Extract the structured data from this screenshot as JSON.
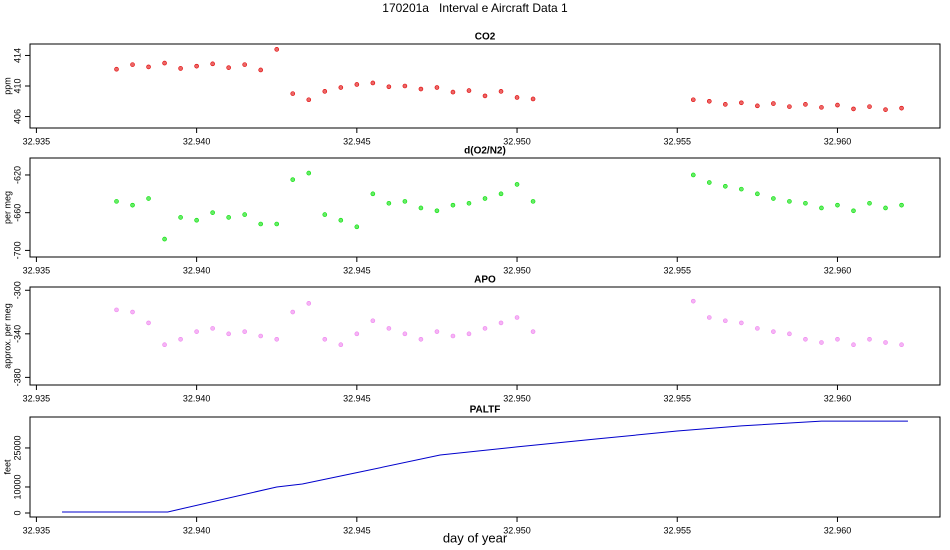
{
  "title": "170201a   Interval e Aircraft Data 1",
  "xlabel": "day of year",
  "chart_data": [
    {
      "type": "scatter",
      "title": "CO2",
      "ylabel": "ppm",
      "color": "#e00000",
      "x": [
        32.9375,
        32.938,
        32.9385,
        32.939,
        32.9395,
        32.94,
        32.9405,
        32.941,
        32.9415,
        32.942,
        32.9425,
        32.943,
        32.9435,
        32.944,
        32.9445,
        32.945,
        32.9455,
        32.946,
        32.9465,
        32.947,
        32.9475,
        32.948,
        32.9485,
        32.949,
        32.9495,
        32.95,
        32.9505,
        32.9555,
        32.956,
        32.9565,
        32.957,
        32.9575,
        32.958,
        32.9585,
        32.959,
        32.9595,
        32.96,
        32.9605,
        32.961,
        32.9615,
        32.962
      ],
      "values": [
        412.2,
        412.8,
        412.5,
        413.0,
        412.3,
        412.6,
        412.9,
        412.4,
        412.8,
        412.1,
        414.8,
        409.0,
        408.2,
        409.3,
        409.8,
        410.2,
        410.4,
        409.9,
        410.0,
        409.6,
        409.8,
        409.2,
        409.4,
        408.7,
        409.3,
        408.5,
        408.3,
        408.2,
        408.0,
        407.6,
        407.8,
        407.4,
        407.7,
        407.3,
        407.6,
        407.2,
        407.5,
        407.0,
        407.3,
        406.9,
        407.1
      ],
      "xlim": [
        32.9348,
        32.9632
      ],
      "ylim": [
        404.5,
        415.5
      ],
      "xticks": [
        32.935,
        {
          "value": 32.94,
          "label": "32.940"
        },
        32.945,
        {
          "value": 32.95,
          "label": "32.950"
        },
        32.955,
        {
          "value": 32.96,
          "label": "32.960"
        }
      ],
      "yticks": [
        406,
        410,
        414
      ]
    },
    {
      "type": "scatter",
      "title": "d(O2/N2)",
      "ylabel": "per meg",
      "color": "#00e000",
      "x": [
        32.9375,
        32.938,
        32.9385,
        32.939,
        32.9395,
        32.94,
        32.9405,
        32.941,
        32.9415,
        32.942,
        32.9425,
        32.943,
        32.9435,
        32.944,
        32.9445,
        32.945,
        32.9455,
        32.946,
        32.9465,
        32.947,
        32.9475,
        32.948,
        32.9485,
        32.949,
        32.9495,
        32.95,
        32.9505,
        32.9555,
        32.956,
        32.9565,
        32.957,
        32.9575,
        32.958,
        32.9585,
        32.959,
        32.9595,
        32.96,
        32.9605,
        32.961,
        32.9615,
        32.962
      ],
      "values": [
        -648,
        -652,
        -645,
        -688,
        -665,
        -668,
        -660,
        -665,
        -662,
        -672,
        -672,
        -625,
        -618,
        -662,
        -668,
        -675,
        -640,
        -650,
        -648,
        -655,
        -658,
        -652,
        -650,
        -645,
        -640,
        -630,
        -648,
        -620,
        -628,
        -632,
        -635,
        -640,
        -645,
        -648,
        -650,
        -655,
        -652,
        -658,
        -650,
        -655,
        -652
      ],
      "xlim": [
        32.9348,
        32.9632
      ],
      "ylim": [
        -707,
        -602
      ],
      "xticks": [
        32.935,
        {
          "value": 32.94,
          "label": "32.940"
        },
        32.945,
        {
          "value": 32.95,
          "label": "32.950"
        },
        32.955,
        {
          "value": 32.96,
          "label": "32.960"
        }
      ],
      "yticks": [
        -700,
        -660,
        -620
      ]
    },
    {
      "type": "scatter",
      "title": "APO",
      "ylabel": "approx. per meg",
      "color": "#ee82ee",
      "x": [
        32.9375,
        32.938,
        32.9385,
        32.939,
        32.9395,
        32.94,
        32.9405,
        32.941,
        32.9415,
        32.942,
        32.9425,
        32.943,
        32.9435,
        32.944,
        32.9445,
        32.945,
        32.9455,
        32.946,
        32.9465,
        32.947,
        32.9475,
        32.948,
        32.9485,
        32.949,
        32.9495,
        32.95,
        32.9505,
        32.9555,
        32.956,
        32.9565,
        32.957,
        32.9575,
        32.958,
        32.9585,
        32.959,
        32.9595,
        32.96,
        32.9605,
        32.961,
        32.9615,
        32.962
      ],
      "values": [
        -318,
        -320,
        -330,
        -350,
        -345,
        -338,
        -335,
        -340,
        -338,
        -342,
        -345,
        -320,
        -312,
        -345,
        -350,
        -340,
        -328,
        -335,
        -340,
        -345,
        -338,
        -342,
        -340,
        -335,
        -330,
        -325,
        -338,
        -310,
        -325,
        -328,
        -330,
        -335,
        -338,
        -340,
        -345,
        -348,
        -345,
        -350,
        -345,
        -348,
        -350
      ],
      "xlim": [
        32.9348,
        32.9632
      ],
      "ylim": [
        -387,
        -297
      ],
      "xticks": [
        32.935,
        {
          "value": 32.94,
          "label": "32.940"
        },
        32.945,
        {
          "value": 32.95,
          "label": "32.950"
        },
        32.955,
        {
          "value": 32.96,
          "label": "32.960"
        }
      ],
      "yticks": [
        -380,
        -340,
        -300
      ]
    },
    {
      "type": "line",
      "title": "PALTF",
      "ylabel": "feet",
      "color": "#0000cc",
      "x": [
        32.9358,
        32.9391,
        32.9425,
        32.9433,
        32.945,
        32.9476,
        32.95,
        32.9525,
        32.955,
        32.957,
        32.9595,
        32.9622
      ],
      "values": [
        400,
        400,
        10000,
        11150,
        15500,
        22300,
        25400,
        28500,
        31500,
        33500,
        35300,
        35300
      ],
      "xlim": [
        32.9348,
        32.9632
      ],
      "ylim": [
        -1540,
        36900
      ],
      "xticks": [
        32.935,
        {
          "value": 32.94,
          "label": "32.940"
        },
        32.945,
        {
          "value": 32.95,
          "label": "32.950"
        },
        32.955,
        {
          "value": 32.96,
          "label": "32.960"
        }
      ],
      "yticks": [
        0,
        10000,
        25000
      ]
    }
  ]
}
